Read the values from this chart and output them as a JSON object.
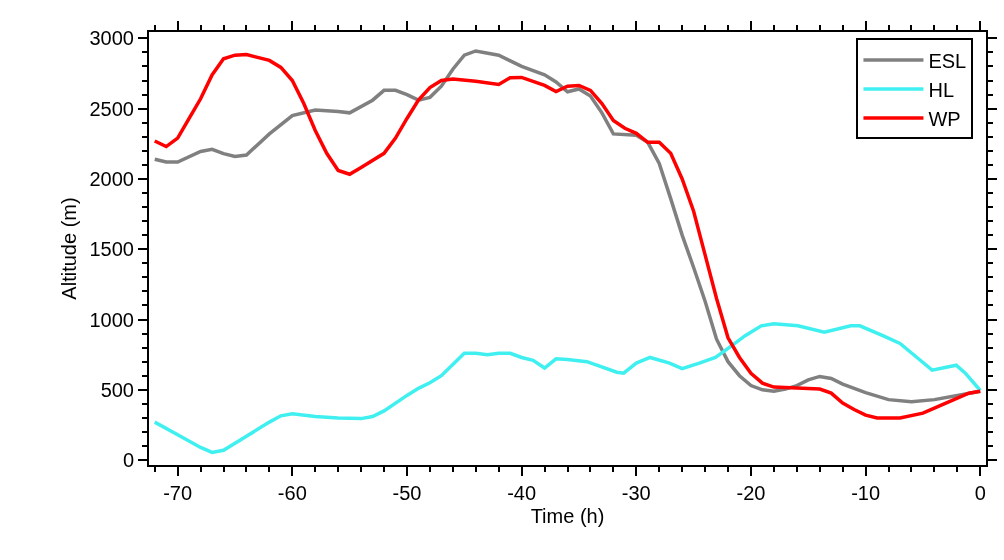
{
  "chart_data": {
    "type": "line",
    "xlabel": "Time (h)",
    "ylabel": "Altitude (m)",
    "xlim": [
      -72.5,
      0.5
    ],
    "xticks": [
      -70,
      -60,
      -50,
      -40,
      -30,
      -20,
      -10,
      0
    ],
    "ylim": [
      -35,
      3045
    ],
    "yticks": [
      0,
      500,
      1000,
      1500,
      2000,
      2500,
      3000
    ],
    "legend": "top right",
    "marker": "none",
    "line_style": "solid",
    "series": [
      {
        "name": "ESL",
        "color": "#808080",
        "x": [
          -72,
          -71,
          -70,
          -68,
          -67,
          -66,
          -65,
          -64,
          -62,
          -60,
          -58,
          -56,
          -55,
          -53,
          -52,
          -51,
          -50,
          -49,
          -48,
          -47,
          -46,
          -45,
          -44,
          -42,
          -40,
          -38,
          -37,
          -36,
          -35,
          -34,
          -33,
          -32,
          -30,
          -29,
          -28,
          -27,
          -26,
          -25,
          -24,
          -23,
          -22,
          -21,
          -20,
          -19,
          -18,
          -17,
          -16,
          -15,
          -14,
          -13,
          -12,
          -10,
          -8,
          -6,
          -4,
          -2,
          0
        ],
        "values": [
          2140,
          2120,
          2120,
          2195,
          2210,
          2180,
          2160,
          2170,
          2320,
          2450,
          2490,
          2480,
          2470,
          2560,
          2630,
          2630,
          2600,
          2560,
          2580,
          2660,
          2780,
          2880,
          2910,
          2880,
          2800,
          2740,
          2690,
          2620,
          2640,
          2590,
          2470,
          2320,
          2310,
          2260,
          2110,
          1860,
          1600,
          1370,
          1130,
          860,
          700,
          600,
          530,
          500,
          490,
          505,
          530,
          570,
          595,
          580,
          540,
          480,
          430,
          415,
          430,
          460,
          490
        ]
      },
      {
        "name": "HL",
        "color": "#40f0f0",
        "x": [
          -72,
          -70,
          -68,
          -67,
          -66,
          -64,
          -62,
          -61,
          -60,
          -58,
          -56,
          -54,
          -53,
          -52,
          -50,
          -49,
          -48,
          -47,
          -46,
          -45,
          -44,
          -43,
          -42,
          -41,
          -40,
          -39,
          -38,
          -37,
          -36,
          -34.3,
          -31.7,
          -31.1,
          -30,
          -28.8,
          -27.1,
          -26,
          -24.5,
          -23.1,
          -21.9,
          -20.5,
          -19.1,
          -18,
          -15.9,
          -13.6,
          -11.3,
          -10.5,
          -8.5,
          -7,
          -5.6,
          -4.2,
          -2.1,
          -1.3,
          0
        ],
        "values": [
          270,
          180,
          90,
          55,
          70,
          170,
          270,
          315,
          330,
          310,
          300,
          295,
          310,
          350,
          460,
          510,
          550,
          600,
          680,
          760,
          760,
          750,
          760,
          760,
          730,
          710,
          655,
          720,
          715,
          700,
          625,
          618,
          690,
          730,
          690,
          650,
          690,
          730,
          800,
          885,
          955,
          970,
          955,
          910,
          955,
          955,
          885,
          830,
          735,
          640,
          675,
          618,
          495
        ]
      },
      {
        "name": "WP",
        "color": "#ff0000",
        "x": [
          -72,
          -71,
          -70,
          -69,
          -68,
          -67,
          -66,
          -65,
          -64,
          -62,
          -61,
          -60,
          -59,
          -58,
          -57,
          -56,
          -55,
          -54,
          -52,
          -51,
          -50,
          -49,
          -48,
          -47,
          -46,
          -44,
          -42,
          -41,
          -40,
          -38,
          -37,
          -36,
          -35,
          -34,
          -33,
          -32,
          -31,
          -30,
          -29,
          -28,
          -27,
          -26,
          -25,
          -24,
          -23,
          -22,
          -21,
          -20,
          -19,
          -18,
          -16,
          -14,
          -13,
          -12,
          -11,
          -10,
          -9,
          -7,
          -5,
          -3,
          -1,
          0
        ],
        "values": [
          2270,
          2230,
          2290,
          2430,
          2570,
          2740,
          2855,
          2880,
          2885,
          2843,
          2793,
          2700,
          2536,
          2345,
          2182,
          2060,
          2033,
          2082,
          2182,
          2290,
          2430,
          2560,
          2650,
          2700,
          2710,
          2694,
          2672,
          2720,
          2722,
          2665,
          2622,
          2660,
          2665,
          2630,
          2536,
          2416,
          2360,
          2324,
          2260,
          2260,
          2182,
          2000,
          1770,
          1460,
          1150,
          870,
          730,
          618,
          547,
          519,
          512,
          505,
          476,
          405,
          360,
          320,
          299,
          300,
          334,
          405,
          476,
          490
        ]
      }
    ]
  }
}
